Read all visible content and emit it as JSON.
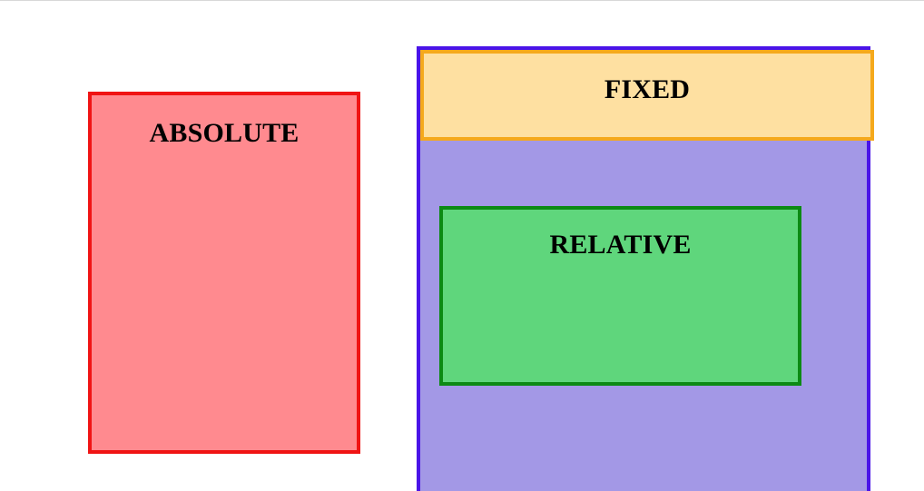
{
  "boxes": {
    "absolute": {
      "label": "ABSOLUTE",
      "border_color": "#f01414",
      "fill_color": "#ff8a8f"
    },
    "container": {
      "border_color": "#4a14e8",
      "fill_color": "#a398e6"
    },
    "relative": {
      "label": "RELATIVE",
      "border_color": "#0c8a14",
      "fill_color": "#5fd67c"
    },
    "fixed": {
      "label": "FIXED",
      "border_color": "#f5a91c",
      "fill_color": "#fee0a1"
    }
  }
}
